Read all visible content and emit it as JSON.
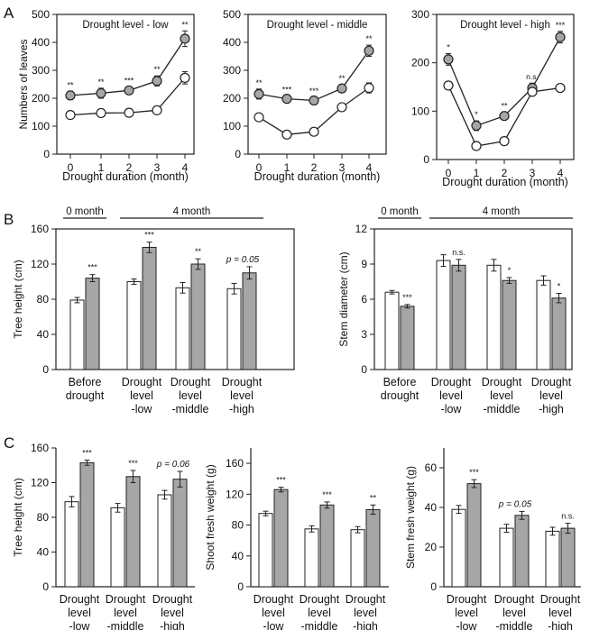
{
  "panel_labels": [
    "A",
    "B",
    "C"
  ],
  "colors": {
    "control": "#ffffff",
    "treated": "#a6a6a6",
    "stroke": "#222222"
  },
  "chart_data": [
    {
      "id": "A1",
      "type": "line",
      "title": "Drought level - low",
      "xlabel": "Drought duration (month)",
      "ylabel": "Numbers of leaves",
      "categories": [
        "0",
        "1",
        "2",
        "3",
        "4"
      ],
      "ylim": [
        0,
        500
      ],
      "yticks": [
        0,
        100,
        200,
        300,
        400,
        500
      ],
      "series": [
        {
          "name": "treated",
          "values": [
            210,
            218,
            228,
            262,
            413
          ],
          "errors": [
            15,
            18,
            12,
            18,
            28
          ]
        },
        {
          "name": "control",
          "values": [
            140,
            147,
            148,
            157,
            273
          ],
          "errors": [
            6,
            6,
            6,
            6,
            22
          ]
        }
      ],
      "annotations": [
        "**",
        "**",
        "***",
        "**",
        "**"
      ]
    },
    {
      "id": "A2",
      "type": "line",
      "title": "Drought level - middle",
      "xlabel": "Drought duration (month)",
      "ylabel": "",
      "categories": [
        "0",
        "1",
        "2",
        "3",
        "4"
      ],
      "ylim": [
        0,
        500
      ],
      "yticks": [
        0,
        100,
        200,
        300,
        400,
        500
      ],
      "series": [
        {
          "name": "treated",
          "values": [
            215,
            198,
            192,
            235,
            370
          ],
          "errors": [
            18,
            10,
            12,
            14,
            20
          ]
        },
        {
          "name": "control",
          "values": [
            132,
            70,
            80,
            168,
            237
          ],
          "errors": [
            6,
            6,
            6,
            10,
            18
          ]
        }
      ],
      "annotations": [
        "**",
        "***",
        "***",
        "**",
        "**"
      ]
    },
    {
      "id": "A3",
      "type": "line",
      "title": "Drought level - high",
      "xlabel": "Drought duration (month)",
      "ylabel": "",
      "categories": [
        "0",
        "1",
        "2",
        "3",
        "4"
      ],
      "ylim": [
        0,
        300
      ],
      "yticks": [
        0,
        100,
        200,
        300
      ],
      "series": [
        {
          "name": "treated",
          "values": [
            207,
            70,
            90,
            148,
            253
          ],
          "errors": [
            12,
            10,
            8,
            10,
            12
          ]
        },
        {
          "name": "control",
          "values": [
            153,
            28,
            38,
            140,
            148
          ],
          "errors": [
            6,
            4,
            4,
            6,
            6
          ]
        }
      ],
      "annotations": [
        "*",
        "*",
        "**",
        "n.s.",
        "***"
      ]
    },
    {
      "id": "B1",
      "type": "bar",
      "xlabel": "",
      "ylabel": "Tree height (cm)",
      "categories": [
        "Before drought",
        "Drought level -low",
        "Drought level -middle",
        "Drought level -high"
      ],
      "ylim": [
        0,
        160
      ],
      "yticks": [
        0,
        40,
        80,
        120,
        160
      ],
      "series": [
        {
          "name": "control",
          "values": [
            79,
            100,
            93,
            92
          ],
          "errors": [
            3,
            3,
            6,
            6
          ]
        },
        {
          "name": "treated",
          "values": [
            104,
            139,
            120,
            110
          ],
          "errors": [
            4,
            6,
            6,
            7
          ]
        }
      ],
      "annotations": [
        "***",
        "***",
        "**",
        "p = 0.05"
      ],
      "brackets": [
        {
          "label": "0 month",
          "from": 0,
          "to": 0
        },
        {
          "label": "4 month",
          "from": 1,
          "to": 3
        }
      ]
    },
    {
      "id": "B2",
      "type": "bar",
      "xlabel": "",
      "ylabel": "Stem diameter (cm)",
      "categories": [
        "Before drought",
        "Drought level -low",
        "Drought level -middle",
        "Drought level -high"
      ],
      "ylim": [
        0,
        12
      ],
      "yticks": [
        0,
        3,
        6,
        9,
        12
      ],
      "series": [
        {
          "name": "control",
          "values": [
            6.6,
            9.3,
            8.9,
            7.6
          ],
          "errors": [
            0.15,
            0.5,
            0.5,
            0.4
          ]
        },
        {
          "name": "treated",
          "values": [
            5.4,
            8.9,
            7.6,
            6.1
          ],
          "errors": [
            0.15,
            0.5,
            0.25,
            0.4
          ]
        }
      ],
      "annotations": [
        "***",
        "n.s.",
        "*",
        "*"
      ],
      "brackets": [
        {
          "label": "0 month",
          "from": 0,
          "to": 0
        },
        {
          "label": "4 month",
          "from": 1,
          "to": 3
        }
      ]
    },
    {
      "id": "C1",
      "type": "bar",
      "xlabel": "",
      "ylabel": "Tree height (cm)",
      "categories": [
        "Drought level -low",
        "Drought level -middle",
        "Drought level -high"
      ],
      "ylim": [
        0,
        160
      ],
      "yticks": [
        0,
        40,
        80,
        120,
        160
      ],
      "series": [
        {
          "name": "control",
          "values": [
            98,
            91,
            106
          ],
          "errors": [
            6,
            5,
            5
          ]
        },
        {
          "name": "treated",
          "values": [
            143,
            127,
            124
          ],
          "errors": [
            3,
            7,
            9
          ]
        }
      ],
      "annotations": [
        "***",
        "***",
        "p = 0.06"
      ]
    },
    {
      "id": "C2",
      "type": "bar",
      "xlabel": "",
      "ylabel": "Shoot fresh weight (g)",
      "categories": [
        "Drought level -low",
        "Drought level -middle",
        "Drought level -high"
      ],
      "ylim": [
        0,
        180
      ],
      "yticks": [
        0,
        40,
        80,
        120,
        160
      ],
      "series": [
        {
          "name": "control",
          "values": [
            95,
            75,
            74
          ],
          "errors": [
            3,
            4,
            4
          ]
        },
        {
          "name": "treated",
          "values": [
            126,
            106,
            100
          ],
          "errors": [
            3,
            4,
            6
          ]
        }
      ],
      "annotations": [
        "***",
        "***",
        "**"
      ]
    },
    {
      "id": "C3",
      "type": "bar",
      "xlabel": "",
      "ylabel": "Stem fresh weight (g)",
      "categories": [
        "Drought level -low",
        "Drought level -middle",
        "Drought level -high"
      ],
      "ylim": [
        0,
        70
      ],
      "yticks": [
        0,
        20,
        40,
        60
      ],
      "series": [
        {
          "name": "control",
          "values": [
            39,
            29.5,
            28
          ],
          "errors": [
            2,
            2,
            2
          ]
        },
        {
          "name": "treated",
          "values": [
            52,
            36,
            29.5
          ],
          "errors": [
            2,
            2,
            2.5
          ]
        }
      ],
      "annotations": [
        "***",
        "p = 0.05",
        "n.s."
      ]
    }
  ]
}
